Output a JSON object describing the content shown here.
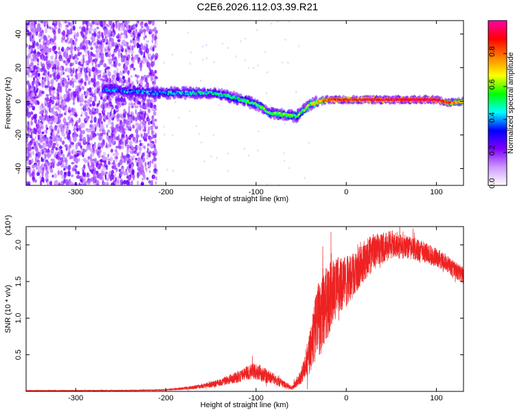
{
  "title": "C2E6.2026.112.03.39.R21",
  "chart_data": [
    {
      "type": "heatmap",
      "name": "spectrogram",
      "xlabel": "Height of straight line (km)",
      "ylabel": "Frequency (Hz)",
      "xlim": [
        -355,
        130
      ],
      "ylim": [
        -50,
        48
      ],
      "xticks": [
        -300,
        -200,
        -100,
        0,
        100
      ],
      "yticks": [
        -40,
        -20,
        0,
        20,
        40
      ],
      "colorbar": {
        "label": "Normalized spectral amplitude",
        "range": [
          0,
          1
        ],
        "ticks": [
          "0.0",
          "0.2",
          "0.4",
          "0.6",
          "0.8"
        ],
        "tick_values": [
          0.0,
          0.2,
          0.4,
          0.6,
          0.8
        ],
        "colors": [
          "#ffffff",
          "#cc99ff",
          "#7f00ff",
          "#0000ff",
          "#00ffff",
          "#00ff00",
          "#ffff00",
          "#ff8000",
          "#ff0000",
          "#ff00aa"
        ]
      },
      "noise_region_km": [
        -355,
        -210
      ],
      "signal_track": {
        "x": [
          -270,
          -240,
          -210,
          -180,
          -150,
          -130,
          -110,
          -95,
          -85,
          -70,
          -55,
          -40,
          -30,
          -20,
          0,
          40,
          80,
          100,
          115,
          130
        ],
        "y": [
          7,
          6,
          5,
          5,
          5,
          3,
          0,
          -3,
          -7,
          -8,
          -9,
          -2,
          0,
          1,
          1,
          1,
          1,
          1,
          -1,
          0
        ],
        "amplitude": [
          0.35,
          0.38,
          0.4,
          0.42,
          0.45,
          0.48,
          0.5,
          0.55,
          0.55,
          0.58,
          0.55,
          0.6,
          0.75,
          0.85,
          0.85,
          0.9,
          0.95,
          0.92,
          0.8,
          0.75
        ]
      }
    },
    {
      "type": "line",
      "name": "snr",
      "xlabel": "Height of straight line (km)",
      "ylabel": "SNR (10 * v/v)",
      "scale_label": "(x10⁴)",
      "xlim": [
        -355,
        130
      ],
      "ylim": [
        0,
        2.25
      ],
      "xticks": [
        -300,
        -200,
        -100,
        0,
        100
      ],
      "yticks": [
        0.5,
        1.0,
        1.5,
        2.0
      ],
      "ytick_labels": [
        "0.5",
        "1.0",
        "1.5",
        "2.0"
      ],
      "color": "#ee2222",
      "envelope": {
        "x": [
          -355,
          -250,
          -200,
          -180,
          -160,
          -140,
          -120,
          -110,
          -100,
          -90,
          -80,
          -70,
          -60,
          -50,
          -40,
          -35,
          -30,
          -25,
          -20,
          -15,
          -10,
          0,
          10,
          20,
          30,
          40,
          50,
          60,
          70,
          80,
          90,
          100,
          110,
          120,
          130
        ],
        "y": [
          0.01,
          0.012,
          0.02,
          0.04,
          0.07,
          0.12,
          0.2,
          0.25,
          0.28,
          0.22,
          0.17,
          0.1,
          0.05,
          0.2,
          0.55,
          0.8,
          1.0,
          1.15,
          1.25,
          1.35,
          1.45,
          1.5,
          1.62,
          1.78,
          1.9,
          1.96,
          2.0,
          1.99,
          1.97,
          1.93,
          1.88,
          1.83,
          1.76,
          1.66,
          1.58
        ],
        "spread": [
          0.005,
          0.006,
          0.01,
          0.02,
          0.03,
          0.05,
          0.08,
          0.1,
          0.12,
          0.1,
          0.08,
          0.05,
          0.03,
          0.1,
          0.3,
          0.45,
          0.55,
          0.55,
          0.5,
          0.45,
          0.4,
          0.35,
          0.3,
          0.28,
          0.25,
          0.22,
          0.2,
          0.18,
          0.16,
          0.15,
          0.14,
          0.13,
          0.12,
          0.12,
          0.12
        ]
      },
      "points": 4800
    }
  ]
}
